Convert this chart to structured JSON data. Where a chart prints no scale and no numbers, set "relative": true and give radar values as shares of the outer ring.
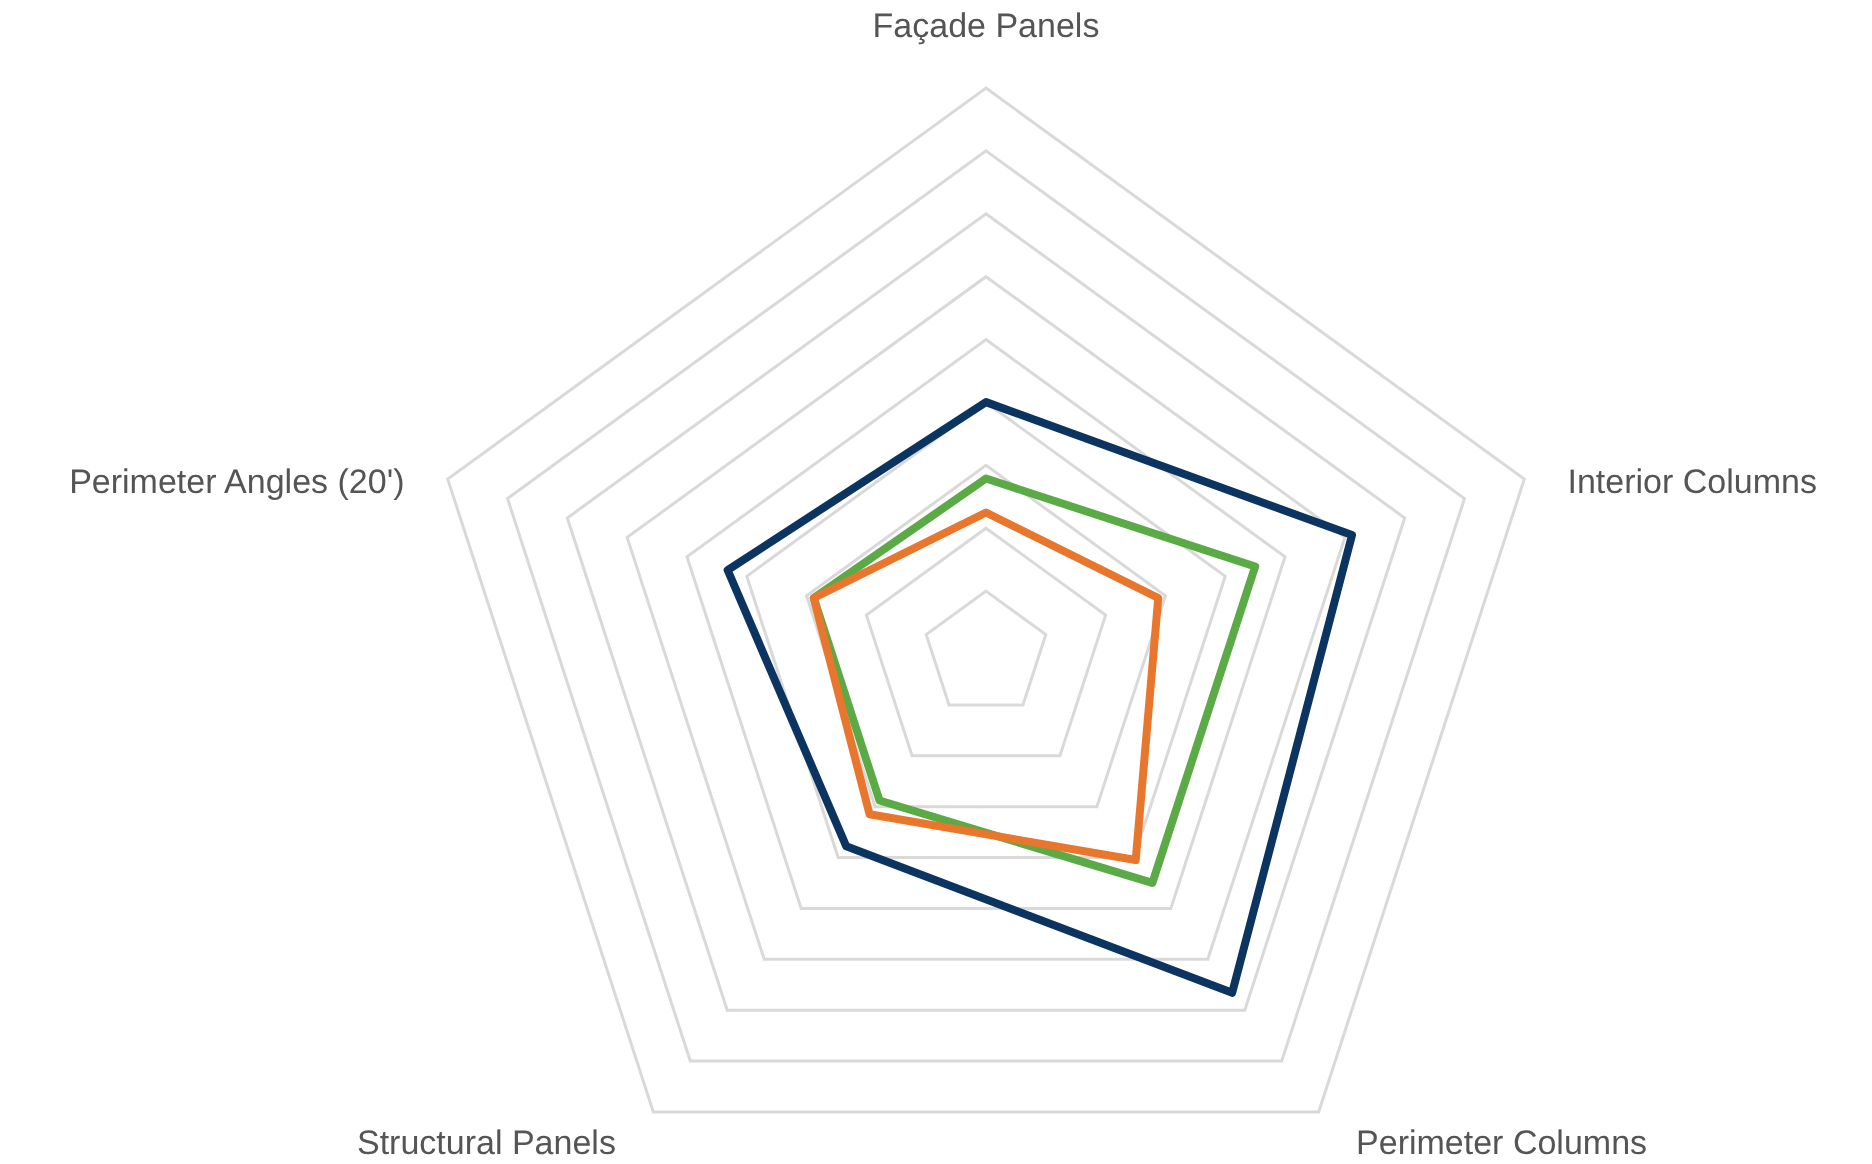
{
  "chart_data": {
    "type": "radar",
    "relative": true,
    "grid": true,
    "categories": [
      "Façade Panels",
      "Interior Columns",
      "Perimeter Columns",
      "Structural Panels",
      "Perimeter Angles (20')"
    ],
    "series": [
      {
        "color": "#0b3560",
        "values": [
          0.445,
          0.68,
          0.74,
          0.42,
          0.48
        ]
      },
      {
        "color": "#5aaa46",
        "values": [
          0.31,
          0.5,
          0.5,
          0.32,
          0.32
        ]
      },
      {
        "color": "#e8762c",
        "values": [
          0.25,
          0.32,
          0.45,
          0.35,
          0.32
        ]
      }
    ]
  }
}
